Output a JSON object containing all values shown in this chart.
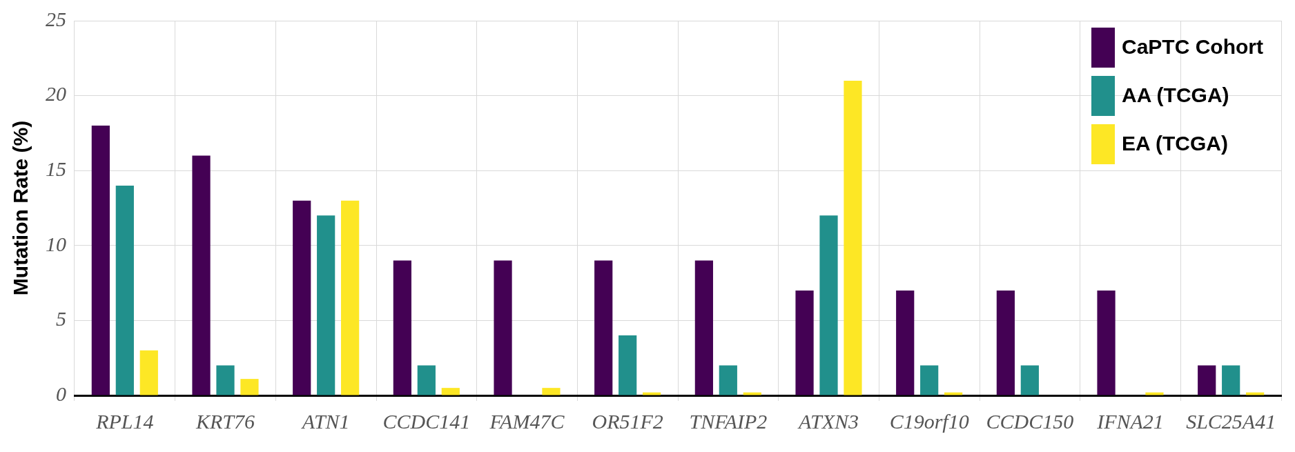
{
  "chart_data": {
    "type": "bar",
    "ylabel": "Mutation Rate (%)",
    "categories": [
      "RPL14",
      "KRT76",
      "ATN1",
      "CCDC141",
      "FAM47C",
      "OR51F2",
      "TNFAIP2",
      "ATXN3",
      "C19orf10",
      "CCDC150",
      "IFNA21",
      "SLC25A41"
    ],
    "series": [
      {
        "name": "CaPTC Cohort",
        "color": "#440154",
        "values": [
          18,
          16,
          13,
          9,
          9,
          9,
          9,
          7,
          7,
          7,
          7,
          2
        ]
      },
      {
        "name": "AA (TCGA)",
        "color": "#21908c",
        "values": [
          14,
          2,
          12,
          2,
          0,
          4,
          2,
          12,
          2,
          2,
          0,
          2
        ]
      },
      {
        "name": "EA (TCGA)",
        "color": "#fde725",
        "values": [
          3,
          1.1,
          13,
          0.5,
          0.5,
          0.2,
          0.2,
          21,
          0.2,
          0,
          0.2,
          0.2
        ]
      }
    ],
    "ylim": [
      0,
      25
    ],
    "yticks": [
      0,
      5,
      10,
      15,
      20,
      25
    ],
    "grid": true,
    "legend": "top right"
  }
}
